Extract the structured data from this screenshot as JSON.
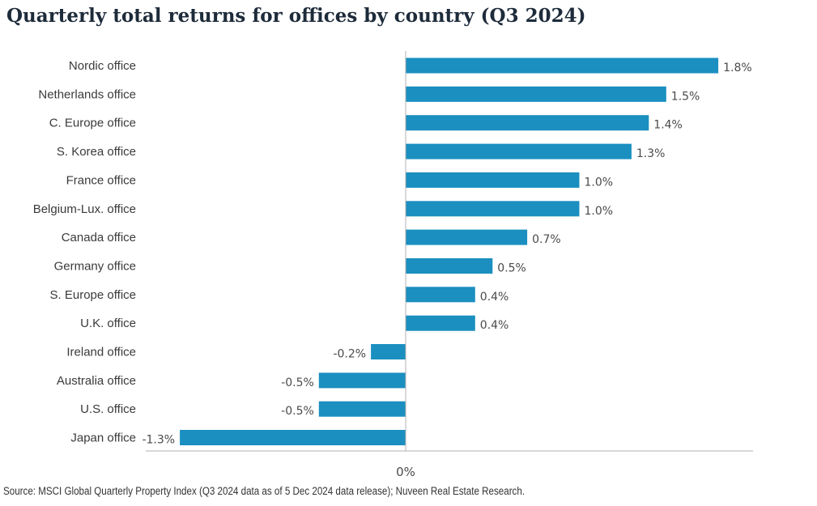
{
  "title": "Quarterly total returns for offices by country (Q3 2024)",
  "source": "Source: MSCI Global Quarterly Property Index (Q3 2024 data as of 5 Dec 2024 data release); Nuveen Real Estate Research.",
  "colors": {
    "bar": "#1a8fc0",
    "axis": "#b0b0b0"
  },
  "chart_data": {
    "type": "bar",
    "orientation": "horizontal",
    "categories": [
      "Nordic office",
      "Netherlands office",
      "C. Europe office",
      "S. Korea office",
      "France office",
      "Belgium-Lux. office",
      "Canada office",
      "Germany office",
      "S. Europe office",
      "U.K. office",
      "Ireland office",
      "Australia office",
      "U.S. office",
      "Japan office"
    ],
    "values": [
      1.8,
      1.5,
      1.4,
      1.3,
      1.0,
      1.0,
      0.7,
      0.5,
      0.4,
      0.4,
      -0.2,
      -0.5,
      -0.5,
      -1.3
    ],
    "data_labels": [
      "1.8%",
      "1.5%",
      "1.4%",
      "1.3%",
      "1.0%",
      "1.0%",
      "0.7%",
      "0.5%",
      "0.4%",
      "0.4%",
      "-0.2%",
      "-0.5%",
      "-0.5%",
      "-1.3%"
    ],
    "x_tick_labels": [
      "0%"
    ],
    "title": "Quarterly total returns for offices by country (Q3 2024)",
    "xlabel": "",
    "ylabel": "",
    "grid": false,
    "legend": "none"
  }
}
